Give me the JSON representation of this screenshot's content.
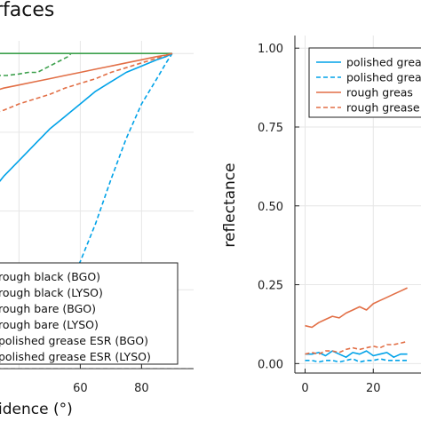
{
  "figure": {
    "title_fragment": "rfaces"
  },
  "chart_data": [
    {
      "type": "line",
      "panel": "left",
      "xlabel": "idence (°)",
      "ylabel": "",
      "xlim": [
        28,
        97
      ],
      "ylim": [
        0,
        1.04
      ],
      "grid": true,
      "x_ticks": [
        60,
        80
      ],
      "x_tick_labels": [
        "60",
        "80"
      ],
      "legend": {
        "placement": "bottom-right",
        "entries": [
          "rough black (BGO)",
          "rough black (LYSO)",
          "rough bare (BGO)",
          "rough bare (LYSO)",
          "polished grease ESR (BGO)",
          "polished grease ESR (LYSO)"
        ]
      },
      "series": [
        {
          "name": "rough black (BGO)",
          "color": "#888888",
          "dash": "solid",
          "x": [
            28,
            97
          ],
          "y": [
            0,
            0
          ]
        },
        {
          "name": "rough black (LYSO)",
          "color": "#888888",
          "dash": "dashed",
          "x": [
            28,
            97
          ],
          "y": [
            0,
            0
          ]
        },
        {
          "name": "rough bare (BGO)",
          "color": "#3DA04D",
          "dash": "solid",
          "x": [
            28,
            40,
            50,
            60,
            70,
            80,
            90
          ],
          "y": [
            1.0,
            1.0,
            1.0,
            1.0,
            1.0,
            1.0,
            1.0
          ]
        },
        {
          "name": "rough bare (LYSO)",
          "color": "#3DA04D",
          "dash": "dashed",
          "x": [
            28,
            32,
            36,
            40,
            43,
            46,
            48,
            50,
            52,
            54,
            56,
            57
          ],
          "y": [
            0.93,
            0.93,
            0.93,
            0.935,
            0.94,
            0.94,
            0.95,
            0.96,
            0.97,
            0.98,
            0.99,
            1.0
          ]
        },
        {
          "name": "polished grease ESR (BGO)",
          "color": "#00A2E8",
          "dash": "solid",
          "x": [
            28,
            30,
            35,
            40,
            45,
            50,
            55,
            60,
            65,
            70,
            75,
            80,
            85,
            88,
            90
          ],
          "y": [
            0.52,
            0.55,
            0.61,
            0.66,
            0.71,
            0.76,
            0.8,
            0.84,
            0.88,
            0.91,
            0.94,
            0.96,
            0.98,
            0.99,
            1.0
          ]
        },
        {
          "name": "polished grease ESR (LYSO)",
          "color": "#00A2E8",
          "dash": "dashed",
          "x": [
            28,
            30,
            35,
            40,
            45,
            50,
            55,
            60,
            65,
            70,
            75,
            80,
            85,
            88,
            90
          ],
          "y": [
            0.02,
            0.03,
            0.05,
            0.08,
            0.12,
            0.17,
            0.24,
            0.34,
            0.46,
            0.6,
            0.73,
            0.84,
            0.92,
            0.97,
            1.0
          ]
        },
        {
          "name": "",
          "color": "#E26F46",
          "dash": "solid",
          "x": [
            28,
            35,
            40,
            45,
            50,
            55,
            60,
            65,
            70,
            75,
            80,
            85,
            88,
            90
          ],
          "y": [
            0.87,
            0.89,
            0.9,
            0.91,
            0.92,
            0.93,
            0.94,
            0.95,
            0.96,
            0.97,
            0.98,
            0.99,
            0.995,
            1.0
          ]
        },
        {
          "name": "",
          "color": "#E26F46",
          "dash": "dashed",
          "x": [
            28,
            35,
            40,
            45,
            50,
            55,
            60,
            65,
            70,
            75,
            80,
            85,
            90
          ],
          "y": [
            0.8,
            0.82,
            0.84,
            0.855,
            0.87,
            0.89,
            0.905,
            0.92,
            0.94,
            0.955,
            0.97,
            0.985,
            1.0
          ]
        }
      ]
    },
    {
      "type": "line",
      "panel": "right",
      "xlabel": "",
      "ylabel": "reflectance",
      "xlim": [
        -3,
        34
      ],
      "ylim": [
        -0.03,
        1.04
      ],
      "grid": true,
      "x_ticks": [
        0,
        20
      ],
      "x_tick_labels": [
        "0",
        "20"
      ],
      "y_ticks": [
        0.0,
        0.25,
        0.5,
        0.75,
        1.0
      ],
      "y_tick_labels": [
        "0.00",
        "0.25",
        "0.50",
        "0.75",
        "1.00"
      ],
      "legend": {
        "placement": "top-right",
        "entries": [
          {
            "label": "polished grea",
            "color": "#00A2E8",
            "dash": "solid"
          },
          {
            "label": "polished grea",
            "color": "#00A2E8",
            "dash": "dashed"
          },
          {
            "label": "rough greas",
            "color": "#E26F46",
            "dash": "solid"
          },
          {
            "label": "rough grease",
            "color": "#E26F46",
            "dash": "dashed"
          }
        ]
      },
      "series": [
        {
          "name": "polished grea",
          "color": "#00A2E8",
          "dash": "solid",
          "x": [
            0,
            2,
            4,
            6,
            8,
            10,
            12,
            14,
            16,
            18,
            20,
            22,
            24,
            26,
            28,
            30
          ],
          "y": [
            0.03,
            0.03,
            0.035,
            0.025,
            0.04,
            0.03,
            0.02,
            0.035,
            0.03,
            0.04,
            0.025,
            0.03,
            0.035,
            0.02,
            0.03,
            0.03
          ]
        },
        {
          "name": "polished grea",
          "color": "#00A2E8",
          "dash": "dashed",
          "x": [
            0,
            2,
            4,
            6,
            8,
            10,
            12,
            14,
            16,
            18,
            20,
            22,
            24,
            26,
            28,
            30
          ],
          "y": [
            0.01,
            0.01,
            0.005,
            0.01,
            0.01,
            0.005,
            0.01,
            0.015,
            0.005,
            0.01,
            0.01,
            0.015,
            0.01,
            0.01,
            0.01,
            0.01
          ]
        },
        {
          "name": "rough greas",
          "color": "#E26F46",
          "dash": "solid",
          "x": [
            0,
            2,
            4,
            6,
            8,
            10,
            12,
            14,
            16,
            18,
            20,
            22,
            24,
            26,
            28,
            30
          ],
          "y": [
            0.12,
            0.115,
            0.13,
            0.14,
            0.15,
            0.145,
            0.16,
            0.17,
            0.18,
            0.17,
            0.19,
            0.2,
            0.21,
            0.22,
            0.23,
            0.24
          ]
        },
        {
          "name": "rough grease",
          "color": "#E26F46",
          "dash": "dashed",
          "x": [
            0,
            2,
            4,
            6,
            8,
            10,
            12,
            14,
            16,
            18,
            20,
            22,
            24,
            26,
            28,
            30
          ],
          "y": [
            0.03,
            0.035,
            0.03,
            0.04,
            0.04,
            0.035,
            0.045,
            0.05,
            0.045,
            0.05,
            0.055,
            0.05,
            0.06,
            0.06,
            0.065,
            0.07
          ]
        }
      ]
    }
  ]
}
